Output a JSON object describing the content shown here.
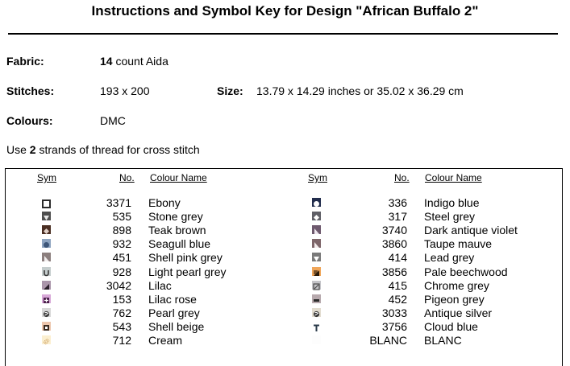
{
  "title": "Instructions and Symbol Key for Design \"African Buffalo 2\"",
  "fabric": {
    "label": "Fabric:",
    "count": "14",
    "rest": " count Aida"
  },
  "stitches": {
    "label": "Stitches:",
    "value": "193 x 200"
  },
  "size": {
    "label": "Size:",
    "value": "13.79 x 14.29 inches or 35.02 x 36.29 cm"
  },
  "colours": {
    "label": "Colours:",
    "value": "DMC"
  },
  "strands": {
    "prefix": "Use ",
    "count": "2",
    "suffix": " strands of thread for cross stitch"
  },
  "headers": {
    "sym": "Sym",
    "no": "No.",
    "name": "Colour Name"
  },
  "left": [
    {
      "no": "3371",
      "name": "Ebony",
      "bg": "#ffffff",
      "fg": "#2b2b2b",
      "icon": "square-outline-icon"
    },
    {
      "no": "535",
      "name": "Stone grey",
      "bg": "#4e4e4e",
      "fg": "#e8e8e8",
      "icon": "triangle-down-icon"
    },
    {
      "no": "898",
      "name": "Teak brown",
      "bg": "#4a2e22",
      "fg": "#e0d0c8",
      "icon": "diamond-icon"
    },
    {
      "no": "932",
      "name": "Seagull blue",
      "bg": "#8ea4c0",
      "fg": "#3e5678",
      "icon": "circle-icon"
    },
    {
      "no": "451",
      "name": "Shell pink grey",
      "bg": "#8c7f7e",
      "fg": "#f2eeee",
      "icon": "triangle-corner-icon"
    },
    {
      "no": "928",
      "name": "Light pearl grey",
      "bg": "#c5cdcd",
      "fg": "#3a3a3a",
      "icon": "u-shape-icon"
    },
    {
      "no": "3042",
      "name": "Lilac",
      "bg": "#aa95aa",
      "fg": "#2a1f2a",
      "icon": "triangle-fill-icon"
    },
    {
      "no": "153",
      "name": "Lilac rose",
      "bg": "#d8a8d8",
      "fg": "#4a1e4a",
      "icon": "plus-square-icon"
    },
    {
      "no": "762",
      "name": "Pearl grey",
      "bg": "#d7d7d7",
      "fg": "#3a3a3a",
      "icon": "swirl-icon"
    },
    {
      "no": "543",
      "name": "Shell beige",
      "bg": "#ecc6ad",
      "fg": "#3a2a20",
      "icon": "cross-square-icon"
    },
    {
      "no": "712",
      "name": "Cream",
      "bg": "#fbefd0",
      "fg": "#c08a40",
      "icon": "dots-icon"
    }
  ],
  "right": [
    {
      "no": "336",
      "name": "Indigo blue",
      "bg": "#222d4d",
      "fg": "#ffffff",
      "icon": "circle-icon"
    },
    {
      "no": "317",
      "name": "Steel grey",
      "bg": "#5f5f66",
      "fg": "#ffffff",
      "icon": "diamond-icon"
    },
    {
      "no": "3740",
      "name": "Dark antique violet",
      "bg": "#6e5a6e",
      "fg": "#f0e8f0",
      "icon": "triangle-corner-icon"
    },
    {
      "no": "3860",
      "name": "Taupe mauve",
      "bg": "#7e666a",
      "fg": "#f4ecec",
      "icon": "triangle-corner-icon"
    },
    {
      "no": "414",
      "name": "Lead grey",
      "bg": "#7a7a7a",
      "fg": "#ffffff",
      "icon": "triangle-down-icon"
    },
    {
      "no": "3856",
      "name": "Pale beechwood",
      "bg": "#f0a65a",
      "fg": "#2a1a0a",
      "icon": "square-fill-icon"
    },
    {
      "no": "415",
      "name": "Chrome grey",
      "bg": "#c4c4c8",
      "fg": "#4a4a4a",
      "icon": "slash-square-icon"
    },
    {
      "no": "452",
      "name": "Pigeon grey",
      "bg": "#b7a9ad",
      "fg": "#2a2a2a",
      "icon": "bar-icon"
    },
    {
      "no": "3033",
      "name": "Antique silver",
      "bg": "#e2dccf",
      "fg": "#333333",
      "icon": "swirl-icon"
    },
    {
      "no": "3756",
      "name": "Cloud blue",
      "bg": "#ffffff",
      "fg": "#2a3a4a",
      "icon": "t-letter-icon"
    },
    {
      "no": "BLANC",
      "name": "BLANC",
      "bg": "#fdfdfd",
      "fg": "#e8e8e8",
      "icon": "blank-icon"
    }
  ]
}
